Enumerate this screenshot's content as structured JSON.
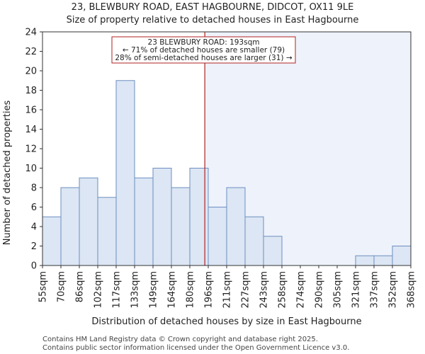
{
  "chart_data": {
    "type": "bar",
    "title_lines": [
      "23, BLEWBURY ROAD, EAST HAGBOURNE, DIDCOT, OX11 9LE",
      "Size of property relative to detached houses in East Hagbourne"
    ],
    "xlabel": "Distribution of detached houses by size in East Hagbourne",
    "ylabel": "Number of detached properties",
    "bin_edges": [
      55,
      70,
      86,
      102,
      117,
      133,
      149,
      164,
      180,
      196,
      211,
      227,
      243,
      258,
      274,
      290,
      305,
      321,
      337,
      352,
      368
    ],
    "bin_edge_labels": [
      "55sqm",
      "70sqm",
      "86sqm",
      "102sqm",
      "117sqm",
      "133sqm",
      "149sqm",
      "164sqm",
      "180sqm",
      "196sqm",
      "211sqm",
      "227sqm",
      "243sqm",
      "258sqm",
      "274sqm",
      "290sqm",
      "305sqm",
      "321sqm",
      "337sqm",
      "352sqm",
      "368sqm"
    ],
    "values": [
      5,
      8,
      9,
      7,
      19,
      9,
      10,
      8,
      10,
      6,
      8,
      5,
      3,
      0,
      0,
      0,
      0,
      1,
      1,
      2
    ],
    "ylim": [
      0,
      24
    ],
    "yticks": [
      0,
      2,
      4,
      6,
      8,
      10,
      12,
      14,
      16,
      18,
      20,
      22,
      24
    ],
    "property_marker": 193,
    "annotation_lines": [
      "23 BLEWBURY ROAD: 193sqm",
      "← 71% of detached houses are smaller (79)",
      "28% of semi-detached houses are larger (31) →"
    ],
    "colors": {
      "bar_fill": "#dce6f4",
      "bar_stroke": "#6d8fc0",
      "marker": "#b22222",
      "shade": "#eef2fb"
    }
  },
  "footer": {
    "line1": "Contains HM Land Registry data © Crown copyright and database right 2025.",
    "line2": "Contains public sector information licensed under the Open Government Licence v3.0."
  }
}
